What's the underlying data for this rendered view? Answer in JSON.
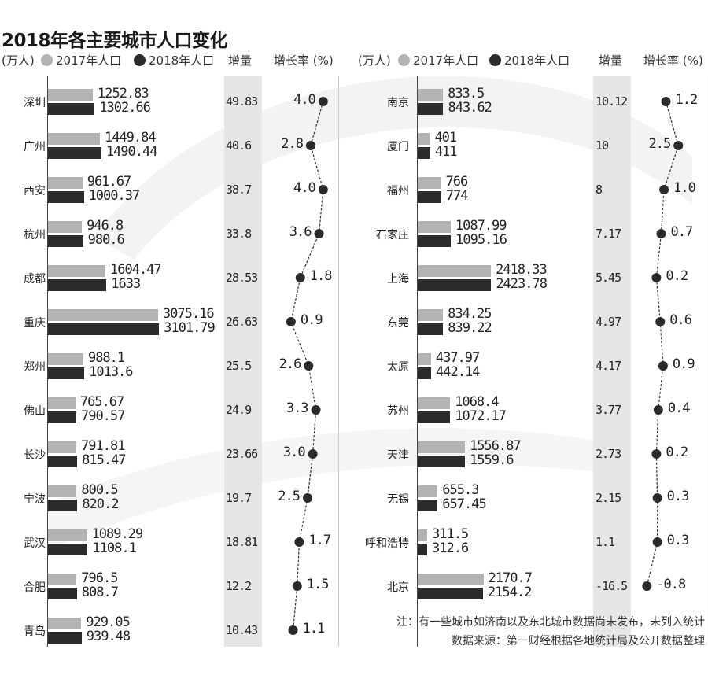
{
  "title": "2018年各主要城市人口变化",
  "legend": {
    "unit": "(万人)",
    "s2017": "2017年人口",
    "s2018": "2018年人口",
    "increment": "增量",
    "rate": "增长率 (%)"
  },
  "colors": {
    "s2017": "#b3b3b3",
    "s2018": "#2b2b2b",
    "band": "#e6e6e6"
  },
  "notes": [
    "注：有一些城市如济南以及东北城市数据尚未发布，未列入统计",
    "数据来源：第一财经根据各地统计局及公开数据整理"
  ],
  "chart_data": [
    {
      "type": "bar",
      "categories": [
        "深圳",
        "广州",
        "西安",
        "杭州",
        "成都",
        "重庆",
        "郑州",
        "佛山",
        "长沙",
        "宁波",
        "武汉",
        "合肥",
        "青岛"
      ],
      "series": [
        {
          "name": "2017年人口",
          "values": [
            1252.83,
            1449.84,
            961.67,
            946.8,
            1604.47,
            3075.16,
            988.1,
            765.67,
            791.81,
            800.5,
            1089.29,
            796.5,
            929.05
          ]
        },
        {
          "name": "2018年人口",
          "values": [
            1302.66,
            1490.44,
            1000.37,
            980.6,
            1633,
            3101.79,
            1013.6,
            790.57,
            815.47,
            820.2,
            1108.1,
            808.7,
            939.48
          ]
        }
      ],
      "increment": [
        "49.83",
        "40.6",
        "38.7",
        "33.8",
        "28.53",
        "26.63",
        "25.5",
        "24.9",
        "23.66",
        "19.7",
        "18.81",
        "12.2",
        "10.43"
      ],
      "growth_rate": [
        4.0,
        2.8,
        4.0,
        3.6,
        1.8,
        0.9,
        2.6,
        3.3,
        3.0,
        2.5,
        1.7,
        1.5,
        1.1
      ]
    },
    {
      "type": "bar",
      "categories": [
        "南京",
        "厦门",
        "福州",
        "石家庄",
        "上海",
        "东莞",
        "太原",
        "苏州",
        "天津",
        "无锡",
        "呼和浩特",
        "北京"
      ],
      "series": [
        {
          "name": "2017年人口",
          "values": [
            833.5,
            401,
            766,
            1087.99,
            2418.33,
            834.25,
            437.97,
            1068.4,
            1556.87,
            655.3,
            311.5,
            2170.7
          ]
        },
        {
          "name": "2018年人口",
          "values": [
            843.62,
            411,
            774,
            1095.16,
            2423.78,
            839.22,
            442.14,
            1072.17,
            1559.6,
            657.45,
            312.6,
            2154.2
          ]
        }
      ],
      "increment": [
        "10.12",
        "10",
        "8",
        "7.17",
        "5.45",
        "4.97",
        "4.17",
        "3.77",
        "2.73",
        "2.15",
        "1.1",
        "-16.5"
      ],
      "growth_rate": [
        1.2,
        2.5,
        1.0,
        0.7,
        0.2,
        0.6,
        0.9,
        0.4,
        0.2,
        0.3,
        0.3,
        -0.8
      ]
    }
  ]
}
